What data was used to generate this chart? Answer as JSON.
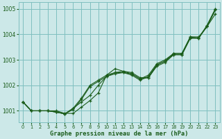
{
  "title": "Graphe pression niveau de la mer (hPa)",
  "bg_color": "#cce8e8",
  "line_color": "#1a5c1a",
  "grid_color": "#7fbfbf",
  "xlim": [
    -0.5,
    23.5
  ],
  "ylim": [
    1000.55,
    1005.25
  ],
  "yticks": [
    1001,
    1002,
    1003,
    1004,
    1005
  ],
  "xticks": [
    0,
    1,
    2,
    3,
    4,
    5,
    6,
    7,
    8,
    9,
    10,
    11,
    12,
    13,
    14,
    15,
    16,
    17,
    18,
    19,
    20,
    21,
    22,
    23
  ],
  "series": [
    [
      1001.35,
      1001.0,
      1001.0,
      1001.0,
      1001.0,
      1000.9,
      1000.9,
      1001.15,
      1001.4,
      1001.7,
      1002.4,
      1002.65,
      1002.55,
      1002.5,
      1002.3,
      1002.3,
      1002.8,
      1002.95,
      1003.25,
      1003.25,
      1003.9,
      1003.9,
      1004.3,
      1004.8
    ],
    [
      1001.35,
      1001.0,
      1001.0,
      1001.0,
      1000.95,
      1000.88,
      1001.1,
      1001.35,
      1001.6,
      1002.0,
      1002.35,
      1002.5,
      1002.55,
      1002.45,
      1002.25,
      1002.3,
      1002.75,
      1002.9,
      1003.2,
      1003.2,
      1003.85,
      1003.85,
      1004.35,
      1005.0
    ],
    [
      1001.35,
      1001.0,
      1001.0,
      1001.0,
      1000.95,
      1000.88,
      1001.1,
      1001.5,
      1002.0,
      1002.2,
      1002.4,
      1002.5,
      1002.5,
      1002.45,
      1002.25,
      1002.4,
      1002.85,
      1003.0,
      1003.25,
      1003.25,
      1003.9,
      1003.85,
      1004.35,
      1005.0
    ],
    [
      1001.35,
      1001.0,
      1001.0,
      1001.0,
      1000.95,
      1000.88,
      1001.05,
      1001.45,
      1001.95,
      1002.15,
      1002.35,
      1002.45,
      1002.5,
      1002.4,
      1002.2,
      1002.35,
      1002.8,
      1002.95,
      1003.2,
      1003.2,
      1003.85,
      1003.85,
      1004.3,
      1004.95
    ]
  ]
}
